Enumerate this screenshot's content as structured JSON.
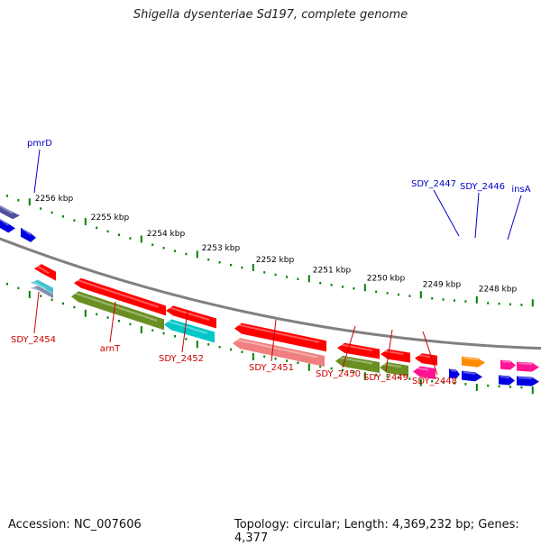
{
  "title": "Shigella dysenteriae Sd197, complete genome",
  "footer": {
    "accession": "Accession: NC_007606",
    "summary": "Topology: circular; Length: 4,369,232 bp; Genes: 4,377"
  },
  "colors": {
    "backbone": "#808080",
    "forward_label": "#0000cc",
    "reverse_label": "#cc0000",
    "tick": "#008000",
    "tick_label": "#000000"
  },
  "scale_labels": [
    "2256 kbp",
    "2255 kbp",
    "2254 kbp",
    "2253 kbp",
    "2252 kbp",
    "2251 kbp",
    "2250 kbp",
    "2249 kbp",
    "2248 kbp"
  ],
  "forward_genes": [
    "pmrD",
    "SDY_2447",
    "SDY_2446",
    "insA"
  ],
  "reverse_genes": [
    "SDY_2454",
    "arnT",
    "SDY_2452",
    "SDY_2451",
    "SDY_2450",
    "SDY_2449",
    "SDY_2448"
  ]
}
